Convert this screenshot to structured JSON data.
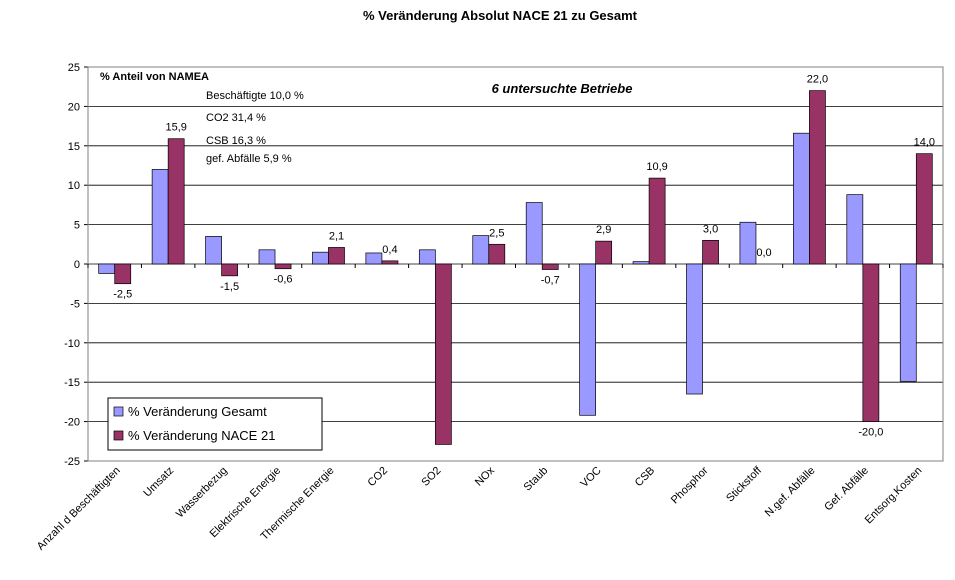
{
  "chart_data": {
    "type": "bar",
    "title": "% Veränderung Absolut NACE 21 zu Gesamt",
    "categories": [
      "Anzahl d Beschäftigten",
      "Umsatz",
      "Wasserbezug",
      "Elektrische Energie",
      "Thermische Energie",
      "CO2",
      "SO2",
      "NOx",
      "Staub",
      "VOC",
      "CSB",
      "Phosphor",
      "Stickstoff",
      "N.gef. Abfälle",
      "Gef. Abfälle",
      "Entsorg.Kosten"
    ],
    "series": [
      {
        "name": "% Veränderung Gesamt",
        "color": "#9999ff",
        "values": [
          -1.2,
          12.0,
          3.5,
          1.8,
          1.5,
          1.4,
          1.8,
          3.6,
          7.8,
          -19.2,
          0.3,
          -16.5,
          5.3,
          16.6,
          8.8,
          -14.9
        ]
      },
      {
        "name": "% Veränderung NACE 21",
        "color": "#993366",
        "values": [
          -2.5,
          15.9,
          -1.5,
          -0.6,
          2.1,
          0.4,
          -22.9,
          2.5,
          -0.7,
          2.9,
          10.9,
          3.0,
          0.0,
          22.0,
          -20.0,
          14.0
        ],
        "value_labels": [
          "-2,5",
          "15,9",
          "-1,5",
          "-0,6",
          "2,1",
          "0,4",
          null,
          "2,5",
          "-0,7",
          "2,9",
          "10,9",
          "3,0",
          "0,0",
          "22,0",
          "-20,0",
          "14,0"
        ]
      }
    ],
    "ylim": [
      -25,
      25
    ],
    "yticks": [
      -25,
      -20,
      -15,
      -10,
      -5,
      0,
      5,
      10,
      15,
      20,
      25
    ],
    "grid": true,
    "legend": "bottom-left",
    "annotations": [
      "% Anteil von NAMEA",
      "Beschäftigte 10,0 %",
      "CO2 31,4 %",
      "CSB 16,3 %",
      "gef. Abfälle 5,9 %",
      "6 untersuchte Betriebe"
    ]
  }
}
